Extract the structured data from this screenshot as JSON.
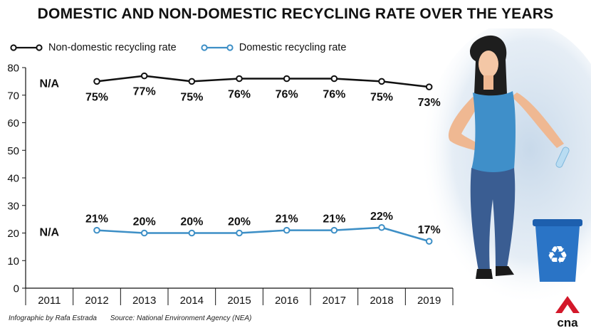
{
  "colors": {
    "non_domestic": "#111111",
    "domestic": "#3d8fc6",
    "logo_red": "#d3182a",
    "backdrop": "#c8d9ea"
  },
  "footer": {
    "credit": "Infographic by Rafa Estrada",
    "source": "Source: National Environment Agency (NEA)"
  },
  "logo_text": "cna",
  "illustration": "woman-with-recycling-bin",
  "chart_data": {
    "type": "line",
    "title": "DOMESTIC AND NON-DOMESTIC RECYCLING RATE OVER THE YEARS",
    "xlabel": "",
    "ylabel": "",
    "categories": [
      "2011",
      "2012",
      "2013",
      "2014",
      "2015",
      "2016",
      "2017",
      "2018",
      "2019"
    ],
    "ylim": [
      0,
      80
    ],
    "yticks": [
      0,
      10,
      20,
      30,
      40,
      50,
      60,
      70,
      80
    ],
    "grid": false,
    "legend_position": "top-left",
    "series": [
      {
        "name": "Non-domestic recycling rate",
        "values": [
          null,
          75,
          77,
          75,
          76,
          76,
          76,
          75,
          73
        ],
        "labels": [
          "N/A",
          "75%",
          "77%",
          "75%",
          "76%",
          "76%",
          "76%",
          "75%",
          "73%"
        ]
      },
      {
        "name": "Domestic recycling rate",
        "values": [
          null,
          21,
          20,
          20,
          20,
          21,
          21,
          22,
          17
        ],
        "labels": [
          "N/A",
          "21%",
          "20%",
          "20%",
          "20%",
          "21%",
          "21%",
          "22%",
          "17%"
        ]
      }
    ]
  }
}
